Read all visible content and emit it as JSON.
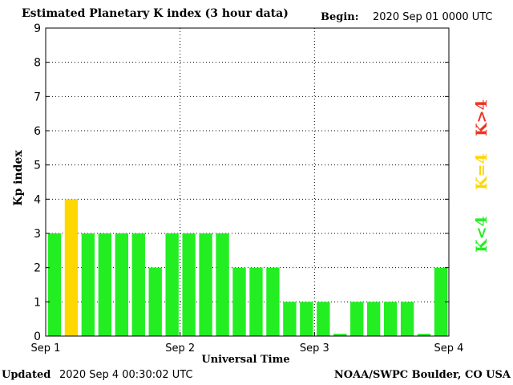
{
  "header": {
    "title": "Estimated Planetary K index (3 hour data)",
    "begin_label": "Begin:",
    "begin_value": "2020 Sep 01 0000 UTC"
  },
  "footer": {
    "updated_label": "Updated",
    "updated_value": "2020 Sep  4 00:30:02 UTC",
    "credit": "NOAA/SWPC Boulder, CO USA"
  },
  "legend": {
    "below": "K<4",
    "equal": "K=4",
    "above": "K>4"
  },
  "colors": {
    "below": "#22ee22",
    "equal": "#ffd700",
    "above": "#ee3322"
  },
  "chart_data": {
    "type": "bar",
    "title": "Estimated Planetary K index (3 hour data)",
    "xlabel": "Universal Time",
    "ylabel": "Kp index",
    "ylim": [
      0,
      9
    ],
    "yticks": [
      "0",
      "1",
      "2",
      "3",
      "4",
      "5",
      "6",
      "7",
      "8",
      "9"
    ],
    "xticks": [
      "Sep 1",
      "Sep 2",
      "Sep 3",
      "Sep 4"
    ],
    "interval_hours": 3,
    "grid": true,
    "values": [
      3,
      4,
      3,
      3,
      3,
      3,
      2,
      3,
      3,
      3,
      3,
      2,
      2,
      2,
      1,
      1,
      1,
      0.067,
      1,
      1,
      1,
      1,
      0.067,
      2
    ]
  }
}
